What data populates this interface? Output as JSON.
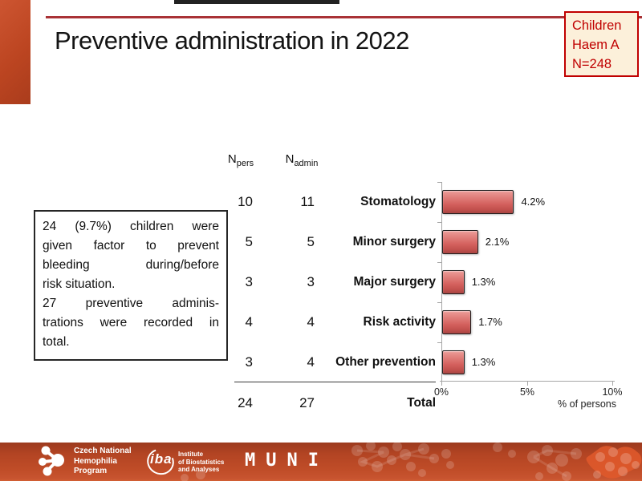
{
  "slide": {
    "title": "Preventive administration in 2022",
    "badge_lines": [
      "Children",
      "Haem A",
      "N=248"
    ],
    "note": {
      "p1": [
        "24 (9.7%) children were",
        "given factor to prevent",
        "bleeding during/before",
        "risk situation."
      ],
      "p2": [
        "27 preventive adminis-",
        "trations were recorded in",
        "total."
      ]
    }
  },
  "table": {
    "headers": [
      {
        "base": "N",
        "sub": "pers"
      },
      {
        "base": "N",
        "sub": "admin"
      }
    ],
    "rows": [
      {
        "n_pers": "10",
        "n_admin": "11",
        "label": "Stomatology"
      },
      {
        "n_pers": "5",
        "n_admin": "5",
        "label": "Minor surgery"
      },
      {
        "n_pers": "3",
        "n_admin": "3",
        "label": "Major surgery"
      },
      {
        "n_pers": "4",
        "n_admin": "4",
        "label": "Risk activity"
      },
      {
        "n_pers": "3",
        "n_admin": "4",
        "label": "Other prevention"
      }
    ],
    "total": {
      "n_pers": "24",
      "n_admin": "27",
      "label": "Total"
    }
  },
  "chart_data": {
    "type": "bar",
    "orientation": "horizontal",
    "categories": [
      "Stomatology",
      "Minor surgery",
      "Major surgery",
      "Risk activity",
      "Other prevention"
    ],
    "values": [
      4.2,
      2.1,
      1.3,
      1.7,
      1.3
    ],
    "value_labels": [
      "4.2%",
      "2.1%",
      "1.3%",
      "1.7%",
      "1.3%"
    ],
    "xlabel": "% of persons",
    "xlim": [
      0,
      10
    ],
    "xticks": [
      "0%",
      "5%",
      "10%"
    ],
    "grid": false,
    "bar_color": "#d4605d",
    "bar_border_color": "#1f1f1f",
    "axis_color": "#a6a6a6"
  },
  "footer": {
    "cnhp_lines": [
      "Czech National",
      "Hemophilia",
      "Program"
    ],
    "iba_word": "iba",
    "iba_lines": [
      "Institute",
      "of Biostatistics",
      "and Analyses"
    ],
    "muni": "MUNI"
  },
  "colors": {
    "accent": "#bc4521",
    "header_line": "#a93236",
    "badge_border": "#c00000",
    "badge_bg": "#fcf0da",
    "footer_bg": "#b34423"
  }
}
